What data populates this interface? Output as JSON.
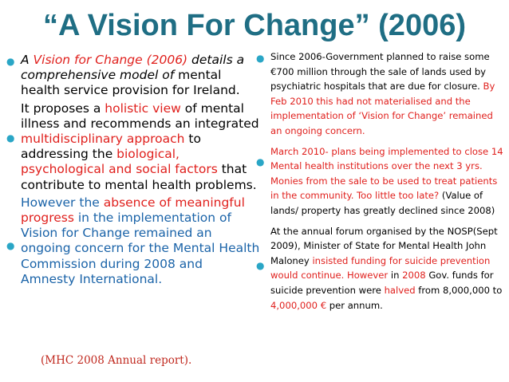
{
  "title": "“A Vision For Change” (2006)",
  "colors": {
    "title": "#1f6e84",
    "bullet": "#2aa6c6",
    "highlight_red": "#e0201d",
    "highlight_blue": "#1a63a8"
  },
  "left": {
    "b1": {
      "a": "A ",
      "b": "Vision for Change (2006)",
      "c": " details a comprehensive model of ",
      "d": "mental health service provision for Ireland."
    },
    "b2": {
      "a": "It proposes a ",
      "b": "holistic view",
      "c": " of mental illness and recommends an integrated ",
      "d": "multidisciplinary approach",
      "e": " to addressing the ",
      "f": "biological, psychological and social factors",
      "g": " that contribute to mental health problems."
    },
    "b3": {
      "a": "However the ",
      "b": "absence of meaningful progress",
      "c": " in the implementation of Vision for Change remained an ongoing concern for the Mental Health Commission during 2008 and Amnesty International."
    },
    "reference": "(MHC 2008 Annual report)."
  },
  "right": {
    "b1": {
      "a": "Since 2006-Government planned to raise some €700 million through the sale of lands used by psychiatric hospitals that are due for closure. ",
      "b": "By Feb 2010 this had not materialised and the implementation of ‘Vision for Change’ remained an ongoing concern."
    },
    "b2": {
      "a": "March 2010- plans being implemented to close 14 Mental health institutions over the next 3 yrs. Monies from the sale to be used to treat patients in the community. Too little too late?",
      "b": " (Value of lands/ property has greatly declined since 2008)"
    },
    "b3": {
      "a": "At the annual forum organised by the NOSP(Sept 2009), Minister of State for Mental Health John Maloney ",
      "b": "insisted funding for suicide prevention would continue.  However",
      "c": " in ",
      "d": "2008",
      "e": " Gov. funds for suicide prevention were ",
      "f": "halved",
      "g": " from 8,000,000 to ",
      "h": "4,000,000 €",
      "i": " per annum."
    }
  }
}
